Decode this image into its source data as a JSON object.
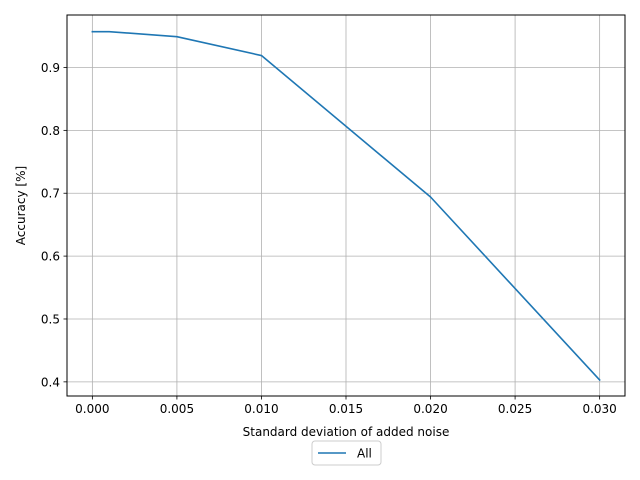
{
  "chart_data": {
    "type": "line",
    "title": "",
    "xlabel": "Standard deviation of added noise",
    "ylabel": "Accuracy [%]",
    "xlim": [
      -0.0015,
      0.0315
    ],
    "ylim": [
      0.3775,
      0.9835
    ],
    "xticks": [
      0.0,
      0.005,
      0.01,
      0.015,
      0.02,
      0.025,
      0.03
    ],
    "xtick_labels": [
      "0.000",
      "0.005",
      "0.010",
      "0.015",
      "0.020",
      "0.025",
      "0.030"
    ],
    "yticks": [
      0.4,
      0.5,
      0.6,
      0.7,
      0.8,
      0.9
    ],
    "ytick_labels": [
      "0.4",
      "0.5",
      "0.6",
      "0.7",
      "0.8",
      "0.9"
    ],
    "grid": true,
    "legend_position": "below",
    "series": [
      {
        "name": "All",
        "color": "#1f77b4",
        "x": [
          0.0,
          0.001,
          0.005,
          0.01,
          0.02,
          0.03
        ],
        "y": [
          0.957,
          0.957,
          0.949,
          0.919,
          0.694,
          0.403
        ]
      }
    ]
  }
}
